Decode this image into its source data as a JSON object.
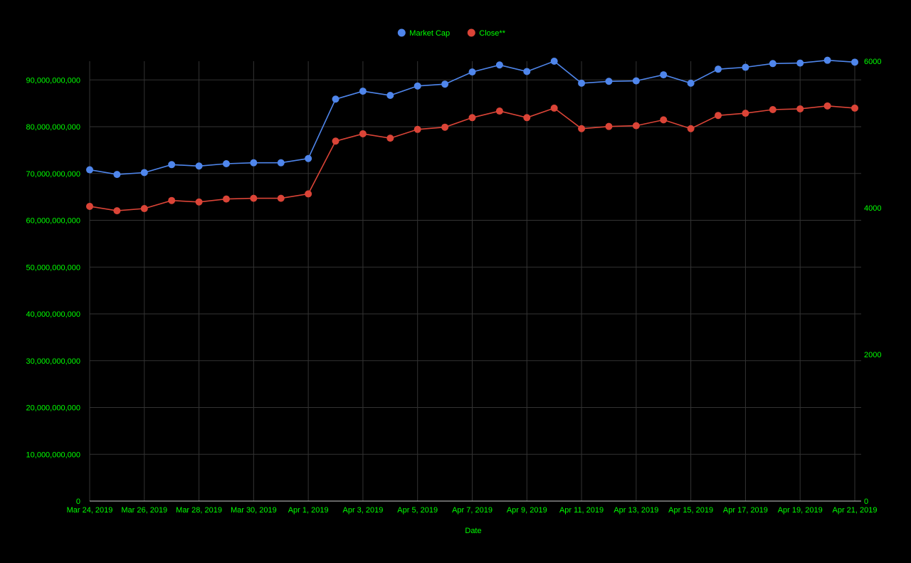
{
  "chart_data": {
    "type": "line",
    "xlabel": "Date",
    "x": [
      "Mar 24, 2019",
      "Mar 25, 2019",
      "Mar 26, 2019",
      "Mar 27, 2019",
      "Mar 28, 2019",
      "Mar 29, 2019",
      "Mar 30, 2019",
      "Mar 31, 2019",
      "Apr 1, 2019",
      "Apr 2, 2019",
      "Apr 3, 2019",
      "Apr 4, 2019",
      "Apr 5, 2019",
      "Apr 6, 2019",
      "Apr 7, 2019",
      "Apr 8, 2019",
      "Apr 9, 2019",
      "Apr 10, 2019",
      "Apr 11, 2019",
      "Apr 12, 2019",
      "Apr 13, 2019",
      "Apr 14, 2019",
      "Apr 15, 2019",
      "Apr 16, 2019",
      "Apr 17, 2019",
      "Apr 18, 2019",
      "Apr 19, 2019",
      "Apr 20, 2019",
      "Apr 21, 2019"
    ],
    "x_tick_labels": [
      "Mar 24, 2019",
      "Mar 26, 2019",
      "Mar 28, 2019",
      "Mar 30, 2019",
      "Apr 1, 2019",
      "Apr 3, 2019",
      "Apr 5, 2019",
      "Apr 7, 2019",
      "Apr 9, 2019",
      "Apr 11, 2019",
      "Apr 13, 2019",
      "Apr 15, 2019",
      "Apr 17, 2019",
      "Apr 19, 2019",
      "Apr 21, 2019"
    ],
    "y_left": {
      "ylim": [
        0,
        94000000000
      ],
      "ticks": [
        0,
        10000000000,
        20000000000,
        30000000000,
        40000000000,
        50000000000,
        60000000000,
        70000000000,
        80000000000,
        90000000000
      ],
      "tick_labels": [
        "0",
        "10,000,000,000",
        "20,000,000,000",
        "30,000,000,000",
        "40,000,000,000",
        "50,000,000,000",
        "60,000,000,000",
        "70,000,000,000",
        "80,000,000,000",
        "90,000,000,000"
      ]
    },
    "y_right": {
      "ylim": [
        0,
        6000
      ],
      "ticks": [
        0,
        2000,
        4000,
        6000
      ],
      "tick_labels": [
        "0",
        "2000",
        "4000",
        "6000"
      ]
    },
    "series": [
      {
        "name": "Market Cap",
        "axis": "left",
        "color": "#4f86ec",
        "values": [
          70800000000,
          69800000000,
          70200000000,
          71900000000,
          71600000000,
          72100000000,
          72300000000,
          72300000000,
          73200000000,
          85900000000,
          87600000000,
          86700000000,
          88700000000,
          89100000000,
          91700000000,
          93200000000,
          91800000000,
          94000000000,
          89300000000,
          89700000000,
          89800000000,
          91100000000,
          89300000000,
          92300000000,
          92700000000,
          93500000000,
          93600000000,
          94200000000,
          93800000000
        ]
      },
      {
        "name": "Close**",
        "axis": "right",
        "color": "#db4437",
        "values": [
          4020,
          3960,
          3990,
          4100,
          4080,
          4120,
          4130,
          4130,
          4190,
          4910,
          5010,
          4950,
          5070,
          5100,
          5230,
          5320,
          5230,
          5360,
          5080,
          5110,
          5120,
          5200,
          5080,
          5260,
          5290,
          5340,
          5350,
          5390,
          5360
        ]
      }
    ],
    "legend_position": "top",
    "grid": true,
    "colors": {
      "background": "#000000",
      "grid": "#333333",
      "axis_text": "#00ff00",
      "baseline": "#cccccc"
    }
  }
}
